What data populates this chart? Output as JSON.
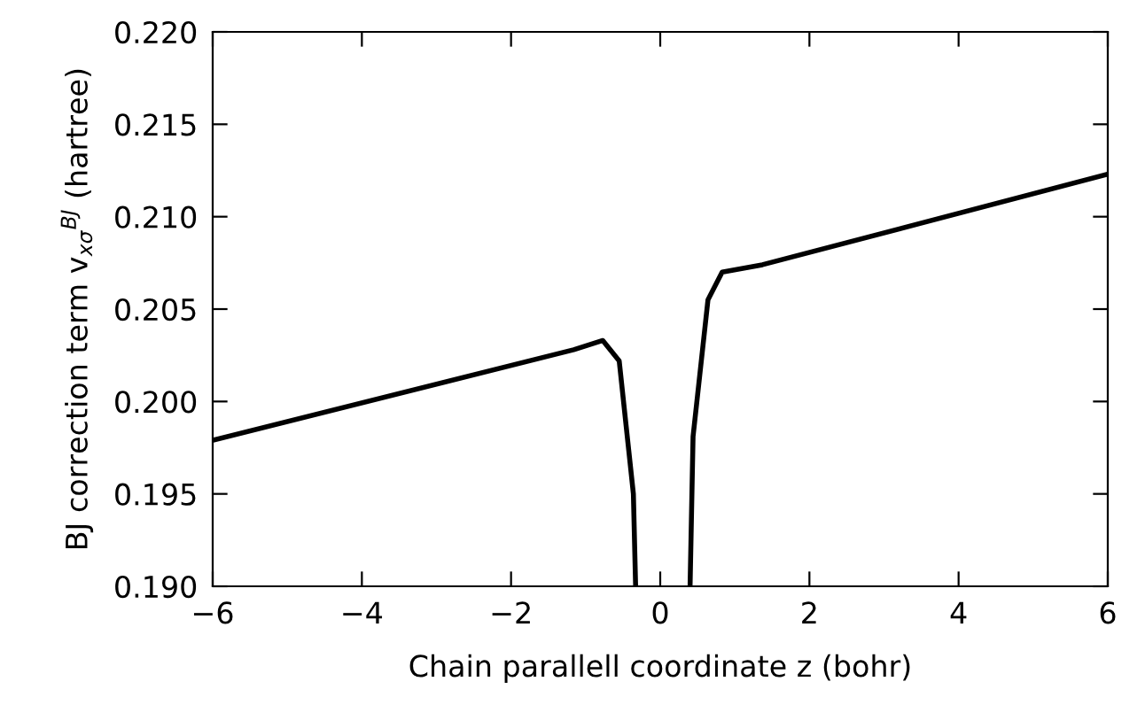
{
  "chart_data": {
    "type": "line",
    "xlabel": "Chain parallell coordinate z (bohr)",
    "ylabel": "BJ correction term v$_{xσ}$$^{BJ}$ (hartree)",
    "series": [
      {
        "color": "#000000",
        "x": [
          -6,
          -1.16,
          -0.77,
          -0.55,
          -0.36,
          -0.33
        ],
        "values": [
          0.1979,
          0.2028,
          0.2033,
          0.2022,
          0.195,
          0.19
        ]
      },
      {
        "color": "#000000",
        "x": [
          0.4,
          0.44,
          0.64,
          0.83,
          1.37,
          6
        ],
        "values": [
          0.19,
          0.1981,
          0.2055,
          0.207,
          0.2074,
          0.2123
        ]
      }
    ],
    "xlim": [
      -6,
      6
    ],
    "ylim": [
      0.19,
      0.22
    ],
    "xticks": [
      {
        "value": -6,
        "label": "−6"
      },
      {
        "value": -4,
        "label": "−4"
      },
      {
        "value": -2,
        "label": "−2"
      },
      0,
      2,
      4,
      6
    ],
    "yticks": [
      {
        "value": 0.19,
        "label": "0.190"
      },
      {
        "value": 0.195,
        "label": "0.195"
      },
      {
        "value": 0.2,
        "label": "0.200"
      },
      {
        "value": 0.205,
        "label": "0.205"
      },
      {
        "value": 0.21,
        "label": "0.210"
      },
      {
        "value": 0.215,
        "label": "0.215"
      },
      {
        "value": 0.22,
        "label": "0.220"
      }
    ],
    "grid": false,
    "marker": "none",
    "line_style": "solid"
  }
}
